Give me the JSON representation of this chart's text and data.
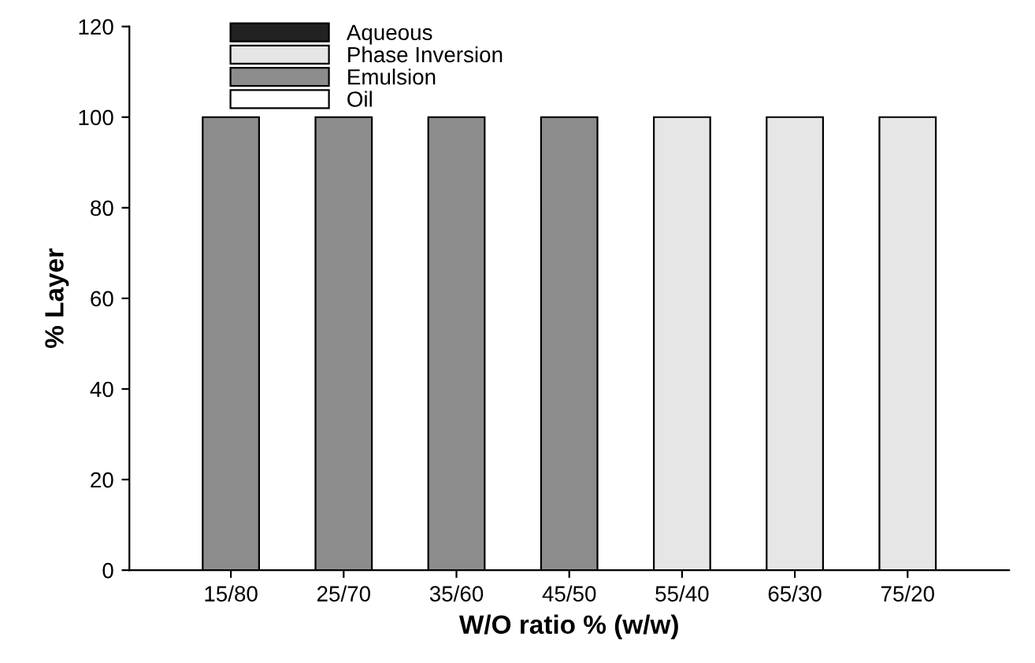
{
  "chart_data": {
    "type": "bar",
    "xlabel": "W/O ratio % (w/w)",
    "ylabel": "% Layer",
    "categories": [
      "15/80",
      "25/70",
      "35/60",
      "45/50",
      "55/40",
      "65/30",
      "75/20"
    ],
    "series": [
      {
        "name": "Aqueous",
        "color": "#222222",
        "values": [
          null,
          null,
          null,
          null,
          null,
          null,
          null
        ]
      },
      {
        "name": "Phase Inversion",
        "color": "#e6e6e6",
        "values": [
          null,
          null,
          null,
          null,
          100,
          100,
          100
        ]
      },
      {
        "name": "Emulsion",
        "color": "#8c8c8c",
        "values": [
          100,
          100,
          100,
          100,
          null,
          null,
          null
        ]
      },
      {
        "name": "Oil",
        "color": "#ffffff",
        "values": [
          null,
          null,
          null,
          null,
          null,
          null,
          null
        ]
      }
    ],
    "ylim": [
      0,
      120
    ],
    "yticks": [
      0,
      20,
      40,
      60,
      80,
      100,
      120
    ],
    "grid": false,
    "legend": "top left"
  }
}
